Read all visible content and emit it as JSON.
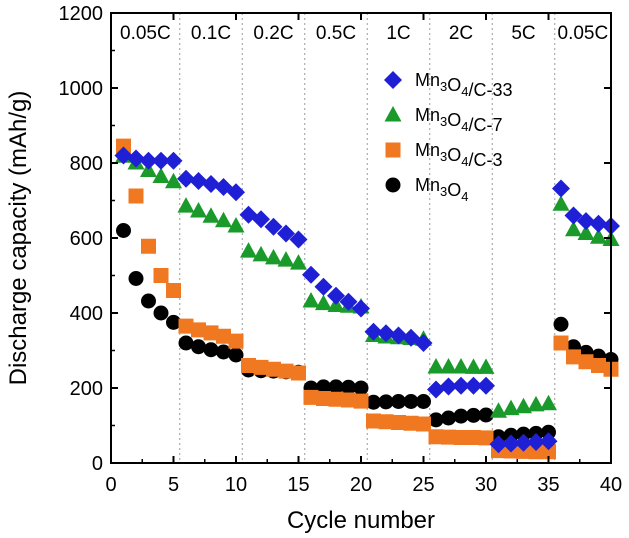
{
  "chart_data": {
    "type": "scatter",
    "title": "",
    "xlabel": "Cycle number",
    "ylabel": "Discharge capacity (mAh/g)",
    "xlim": [
      0,
      40
    ],
    "ylim": [
      0,
      1200
    ],
    "xticks": [
      "0",
      "5",
      "10",
      "15",
      "20",
      "25",
      "30",
      "35",
      "40"
    ],
    "yticks": [
      "0",
      "200",
      "400",
      "600",
      "800",
      "1000",
      "1200"
    ],
    "rate_labels": [
      "0.05C",
      "0.1C",
      "0.2C",
      "0.5C",
      "1C",
      "2C",
      "5C",
      "0.05C"
    ],
    "rate_boundaries": [
      5.5,
      10.5,
      15.5,
      20.5,
      25.5,
      30.5,
      35.5
    ],
    "legend_position": "top-right",
    "series": [
      {
        "name": "Mn3O4/C-33",
        "label_parts": [
          "Mn",
          "3",
          "O",
          "4",
          "/C-33"
        ],
        "marker": "diamond",
        "color": "#1f1fd6",
        "x": [
          1,
          2,
          3,
          4,
          5,
          6,
          7,
          8,
          9,
          10,
          11,
          12,
          13,
          14,
          15,
          16,
          17,
          18,
          19,
          20,
          21,
          22,
          23,
          24,
          25,
          26,
          27,
          28,
          29,
          30,
          31,
          32,
          33,
          34,
          35,
          36,
          37,
          38,
          39,
          40
        ],
        "values": [
          820,
          812,
          806,
          806,
          806,
          758,
          752,
          744,
          736,
          722,
          662,
          650,
          630,
          612,
          596,
          502,
          470,
          446,
          430,
          412,
          350,
          346,
          340,
          334,
          320,
          196,
          204,
          206,
          206,
          206,
          50,
          52,
          54,
          56,
          58,
          732,
          660,
          645,
          638,
          632
        ]
      },
      {
        "name": "Mn3O4/C-7",
        "label_parts": [
          "Mn",
          "3",
          "O",
          "4",
          "/C-7"
        ],
        "marker": "triangle",
        "color": "#1a9a2a",
        "x": [
          1,
          2,
          3,
          4,
          5,
          6,
          7,
          8,
          9,
          10,
          11,
          12,
          13,
          14,
          15,
          16,
          17,
          18,
          19,
          20,
          21,
          22,
          23,
          24,
          25,
          26,
          27,
          28,
          29,
          30,
          31,
          32,
          33,
          34,
          35,
          36,
          37,
          38,
          39,
          40
        ],
        "values": [
          818,
          800,
          780,
          764,
          750,
          685,
          672,
          658,
          646,
          632,
          565,
          555,
          547,
          541,
          533,
          432,
          425,
          420,
          418,
          416,
          340,
          336,
          334,
          332,
          330,
          256,
          256,
          256,
          255,
          255,
          138,
          145,
          150,
          155,
          158,
          690,
          622,
          612,
          602,
          596
        ]
      },
      {
        "name": "Mn3O4/C-3",
        "label_parts": [
          "Mn",
          "3",
          "O",
          "4",
          "/C-3"
        ],
        "marker": "square",
        "color": "#f07820",
        "x": [
          1,
          2,
          3,
          4,
          5,
          6,
          7,
          8,
          9,
          10,
          11,
          12,
          13,
          14,
          15,
          16,
          17,
          18,
          19,
          20,
          21,
          22,
          23,
          24,
          25,
          26,
          27,
          28,
          29,
          30,
          31,
          32,
          33,
          34,
          35,
          36,
          37,
          38,
          39,
          40
        ],
        "values": [
          845,
          712,
          578,
          500,
          460,
          365,
          355,
          347,
          338,
          325,
          260,
          255,
          250,
          245,
          240,
          175,
          172,
          170,
          168,
          165,
          112,
          110,
          108,
          106,
          104,
          70,
          69,
          68,
          68,
          67,
          33,
          32,
          31,
          30,
          30,
          320,
          283,
          270,
          260,
          250
        ]
      },
      {
        "name": "Mn3O4",
        "label_parts": [
          "Mn",
          "3",
          "O",
          "4",
          ""
        ],
        "marker": "circle",
        "color": "#000000",
        "x": [
          1,
          2,
          3,
          4,
          5,
          6,
          7,
          8,
          9,
          10,
          11,
          12,
          13,
          14,
          15,
          16,
          17,
          18,
          19,
          20,
          21,
          22,
          23,
          24,
          25,
          26,
          27,
          28,
          29,
          30,
          31,
          32,
          33,
          34,
          35,
          36,
          37,
          38,
          39,
          40
        ],
        "values": [
          620,
          492,
          432,
          400,
          375,
          320,
          310,
          302,
          296,
          288,
          248,
          246,
          245,
          243,
          242,
          200,
          203,
          203,
          202,
          200,
          162,
          163,
          164,
          164,
          164,
          115,
          120,
          125,
          127,
          128,
          70,
          74,
          77,
          79,
          82,
          370,
          310,
          295,
          285,
          276
        ]
      }
    ]
  }
}
